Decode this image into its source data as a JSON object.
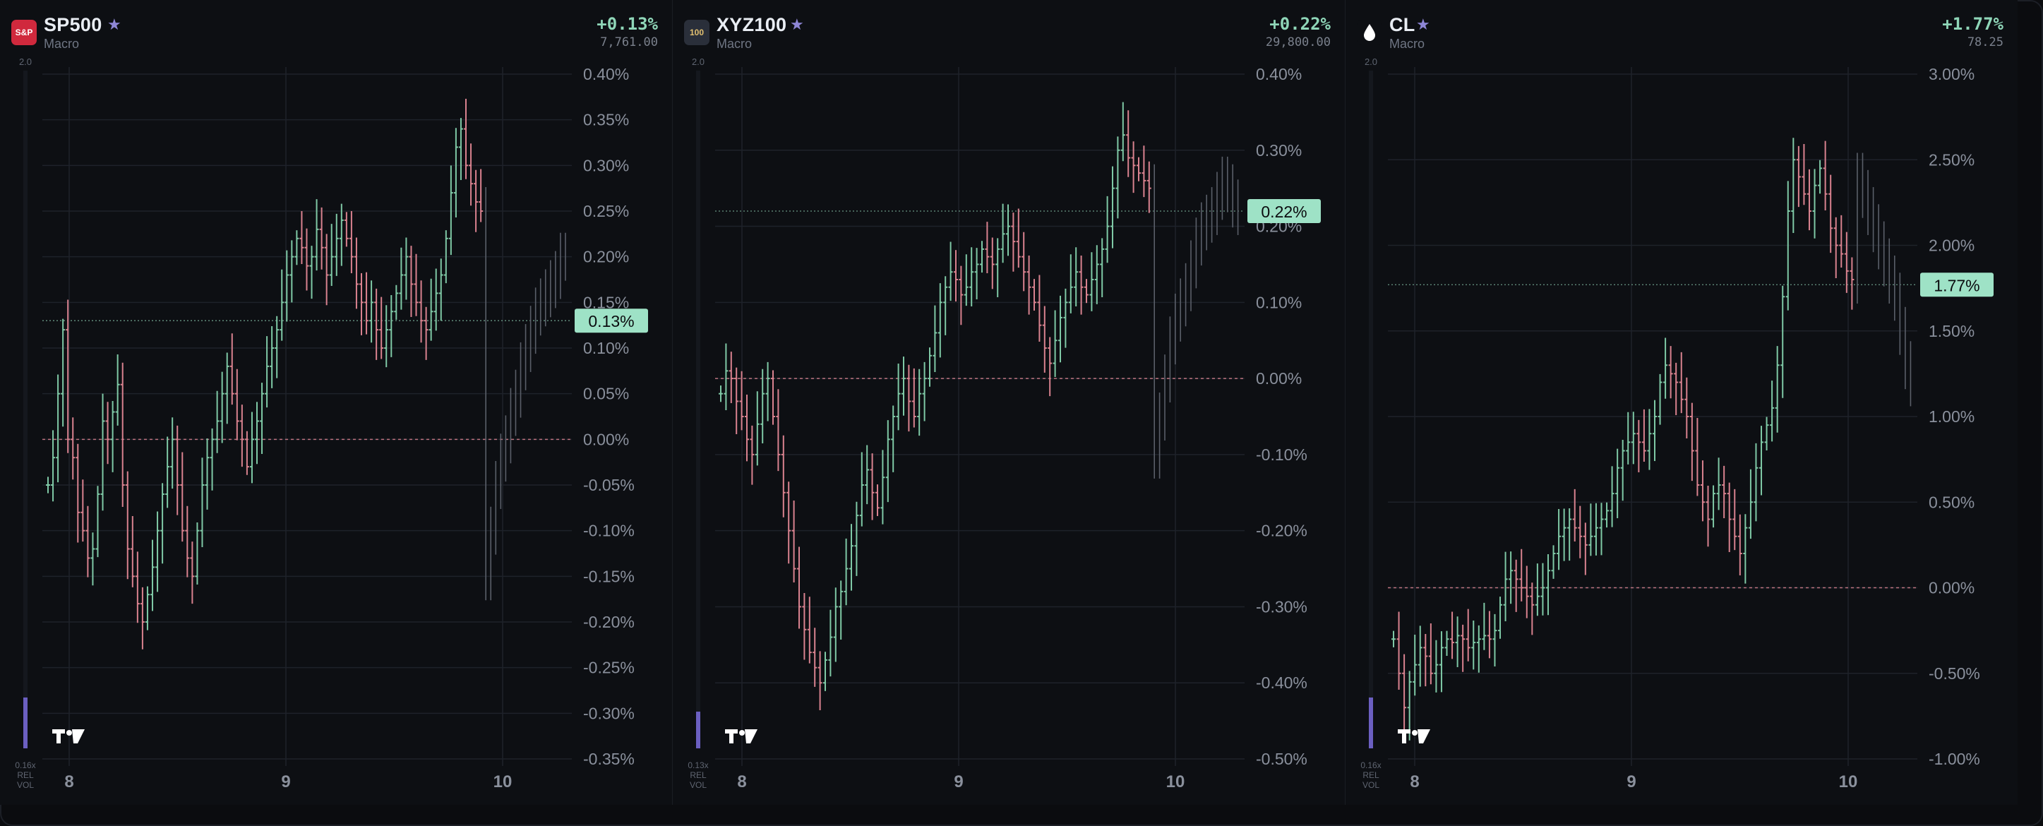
{
  "panels": [
    {
      "ticker": "SP500",
      "category": "Macro",
      "change": "+0.13%",
      "price": "7,761.00",
      "logo_text": "S&P",
      "logo_color": "#d0293d",
      "vol_max": "2.0",
      "vol_label": [
        "0.16x",
        "REL",
        "VOL"
      ],
      "current_label": "0.13%"
    },
    {
      "ticker": "XYZ100",
      "category": "Macro",
      "change": "+0.22%",
      "price": "29,800.00",
      "logo_text": "100",
      "logo_color": "#2a2f3a",
      "vol_max": "2.0",
      "vol_label": [
        "0.13x",
        "REL",
        "VOL"
      ],
      "current_label": "0.22%"
    },
    {
      "ticker": "CL",
      "category": "Macro",
      "change": "+1.77%",
      "price": "78.25",
      "logo_text": "drop-icon",
      "logo_color": "#0d0f13",
      "vol_max": "2.0",
      "vol_label": [
        "0.16x",
        "REL",
        "VOL"
      ],
      "current_label": "1.77%"
    }
  ],
  "colors": {
    "up": "#7fc9a6",
    "down": "#d9828f",
    "grid": "#1e222a",
    "axis_text": "#8a909c",
    "badge_bg": "#9ee2c6",
    "zero_line": "#d9828f",
    "vol_bar": "#6b5fc1"
  },
  "chart_data": [
    {
      "type": "ohlc",
      "x_tick_labels": [
        "8",
        "9",
        "10"
      ],
      "y_tick_labels": [
        "0.40%",
        "0.35%",
        "0.30%",
        "0.25%",
        "0.20%",
        "0.15%",
        "0.10%",
        "0.05%",
        "0.00%",
        "-0.05%",
        "-0.10%",
        "-0.15%",
        "-0.20%",
        "-0.25%",
        "-0.30%",
        "-0.35%"
      ],
      "ylim": [
        -0.35,
        0.4
      ],
      "current": 0.13,
      "series_pct": [
        -0.05,
        -0.02,
        0.05,
        0.12,
        0.0,
        -0.02,
        -0.08,
        -0.1,
        -0.13,
        -0.12,
        -0.06,
        0.02,
        0.0,
        0.03,
        0.06,
        -0.05,
        -0.12,
        -0.15,
        -0.18,
        -0.2,
        -0.17,
        -0.14,
        -0.1,
        -0.06,
        -0.03,
        0.0,
        -0.05,
        -0.1,
        -0.13,
        -0.15,
        -0.1,
        -0.05,
        -0.02,
        0.0,
        0.02,
        0.05,
        0.08,
        0.05,
        0.02,
        0.0,
        -0.03,
        0.0,
        0.02,
        0.05,
        0.08,
        0.1,
        0.12,
        0.15,
        0.18,
        0.2,
        0.22,
        0.21,
        0.19,
        0.2,
        0.23,
        0.21,
        0.18,
        0.2,
        0.22,
        0.24,
        0.22,
        0.2,
        0.17,
        0.15,
        0.13,
        0.15,
        0.12,
        0.1,
        0.12,
        0.14,
        0.16,
        0.18,
        0.2,
        0.17,
        0.15,
        0.13,
        0.12,
        0.14,
        0.16,
        0.18,
        0.22,
        0.27,
        0.32,
        0.34,
        0.3,
        0.28,
        0.26,
        0.25
      ],
      "ghost_pct": [
        -0.15,
        -0.1,
        -0.05,
        -0.02,
        0.0,
        0.03,
        0.05,
        0.08,
        0.1,
        0.12,
        0.14,
        0.15,
        0.16,
        0.17,
        0.18,
        0.2,
        0.2
      ]
    },
    {
      "type": "ohlc",
      "x_tick_labels": [
        "8",
        "9",
        "10"
      ],
      "y_tick_labels": [
        "0.40%",
        "0.30%",
        "0.20%",
        "0.10%",
        "0.00%",
        "-0.10%",
        "-0.20%",
        "-0.30%",
        "-0.40%",
        "-0.50%"
      ],
      "ylim": [
        -0.5,
        0.4
      ],
      "current": 0.22,
      "series_pct": [
        -0.02,
        0.01,
        0.0,
        -0.03,
        -0.05,
        -0.08,
        -0.1,
        -0.06,
        -0.02,
        0.0,
        -0.05,
        -0.1,
        -0.15,
        -0.2,
        -0.25,
        -0.3,
        -0.33,
        -0.36,
        -0.38,
        -0.4,
        -0.37,
        -0.34,
        -0.3,
        -0.28,
        -0.25,
        -0.22,
        -0.18,
        -0.14,
        -0.12,
        -0.15,
        -0.17,
        -0.13,
        -0.08,
        -0.05,
        -0.02,
        0.0,
        -0.03,
        -0.05,
        -0.02,
        0.0,
        0.03,
        0.06,
        0.1,
        0.12,
        0.14,
        0.13,
        0.11,
        0.12,
        0.14,
        0.15,
        0.17,
        0.16,
        0.15,
        0.17,
        0.19,
        0.2,
        0.18,
        0.16,
        0.14,
        0.12,
        0.1,
        0.07,
        0.04,
        0.02,
        0.05,
        0.08,
        0.1,
        0.12,
        0.14,
        0.12,
        0.11,
        0.13,
        0.15,
        0.17,
        0.2,
        0.25,
        0.3,
        0.32,
        0.29,
        0.28,
        0.27,
        0.26,
        0.25
      ],
      "ghost_pct": [
        -0.1,
        -0.05,
        0.0,
        0.05,
        0.08,
        0.1,
        0.12,
        0.15,
        0.18,
        0.2,
        0.21,
        0.22,
        0.24,
        0.26,
        0.25,
        0.23,
        0.22
      ]
    },
    {
      "type": "ohlc",
      "x_tick_labels": [
        "8",
        "9",
        "10"
      ],
      "y_tick_labels": [
        "3.00%",
        "2.50%",
        "2.00%",
        "1.50%",
        "1.00%",
        "0.50%",
        "0.00%",
        "-0.50%",
        "-1.00%"
      ],
      "ylim": [
        -1.0,
        3.0
      ],
      "current": 1.77,
      "series_pct": [
        -0.3,
        -0.5,
        -0.7,
        -0.55,
        -0.45,
        -0.35,
        -0.4,
        -0.5,
        -0.45,
        -0.35,
        -0.3,
        -0.32,
        -0.28,
        -0.3,
        -0.35,
        -0.32,
        -0.3,
        -0.28,
        -0.3,
        -0.25,
        -0.1,
        0.05,
        0.1,
        0.05,
        0.0,
        -0.05,
        -0.1,
        -0.05,
        0.0,
        0.1,
        0.2,
        0.3,
        0.35,
        0.4,
        0.35,
        0.3,
        0.25,
        0.3,
        0.35,
        0.4,
        0.45,
        0.55,
        0.7,
        0.8,
        0.85,
        0.9,
        0.85,
        0.8,
        0.9,
        1.0,
        1.2,
        1.3,
        1.25,
        1.2,
        1.1,
        1.0,
        0.8,
        0.6,
        0.5,
        0.4,
        0.55,
        0.6,
        0.55,
        0.4,
        0.3,
        0.2,
        0.35,
        0.5,
        0.7,
        0.85,
        0.95,
        1.05,
        1.3,
        1.7,
        2.2,
        2.5,
        2.4,
        2.3,
        2.2,
        2.35,
        2.45,
        2.3,
        2.1,
        2.0,
        1.95,
        1.85,
        1.8
      ],
      "ghost_pct": [
        2.4,
        2.3,
        2.2,
        2.1,
        2.0,
        1.9,
        1.8,
        1.7,
        1.5,
        1.3,
        1.2
      ]
    }
  ]
}
